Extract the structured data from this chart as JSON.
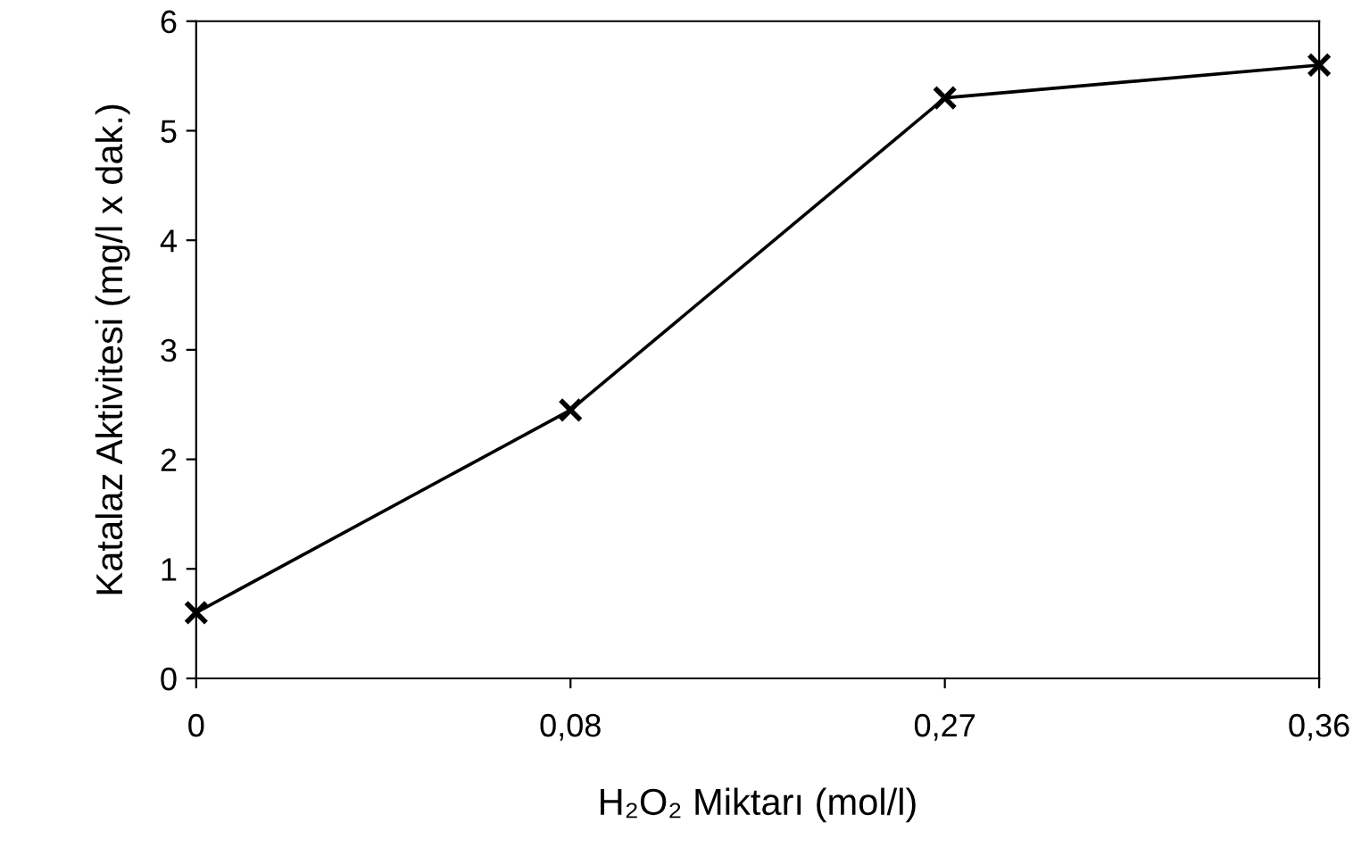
{
  "chart_data": {
    "type": "line",
    "xlabel": "H₂O₂ Miktarı (mol/l)",
    "ylabel": "Katalaz Aktivitesi (mg/l x dak.)",
    "categories": [
      "0",
      "0,08",
      "0,27",
      "0,36"
    ],
    "series": [
      {
        "color": "#000000",
        "values": [
          0.6,
          2.45,
          5.3,
          5.6
        ]
      }
    ],
    "ylim": [
      0,
      6
    ],
    "yticks": [
      0,
      1,
      2,
      3,
      4,
      5,
      6
    ],
    "marker": "cross",
    "line_style": "solid",
    "grid": false,
    "legend": false
  }
}
